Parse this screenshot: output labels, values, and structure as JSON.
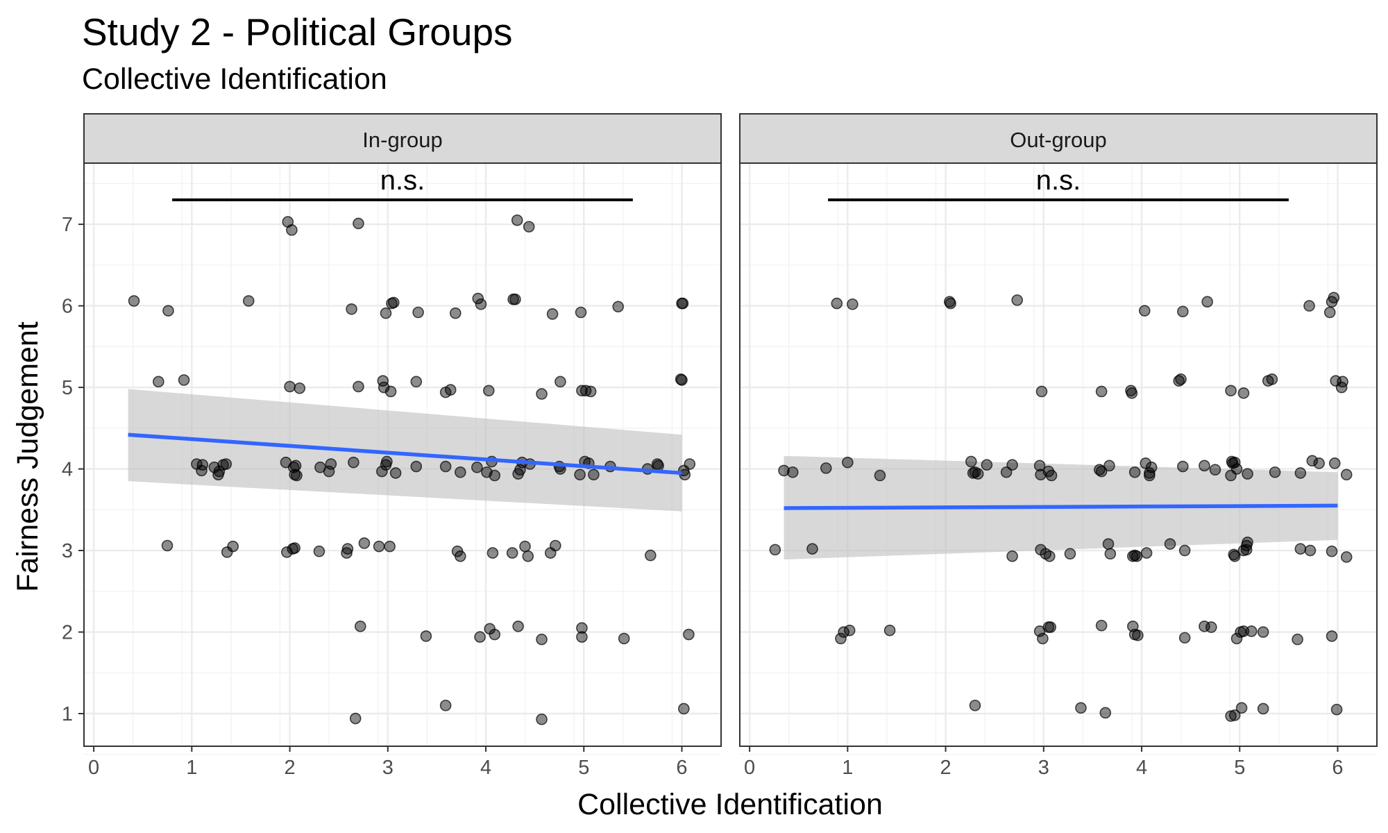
{
  "chart_data": {
    "type": "scatter",
    "title": "Study 2 - Political Groups",
    "subtitle": "Collective Identification",
    "xlabel": "Collective Identification",
    "ylabel": "Fairness Judgement",
    "xlim": [
      -0.1,
      6.4
    ],
    "ylim": [
      0.6,
      7.75
    ],
    "x_ticks": [
      0,
      1,
      2,
      3,
      4,
      5,
      6
    ],
    "y_ticks": [
      1,
      2,
      3,
      4,
      5,
      6,
      7
    ],
    "grid": true,
    "colors": {
      "point": "#000000",
      "trend": "#3366FF",
      "ribbon": "#BEBEBE",
      "strip": "#D9D9D9",
      "grid": "#EBEBEB"
    },
    "panels": [
      {
        "label": "In-group",
        "annotation": {
          "text": "n.s.",
          "x_from": 0.8,
          "x_to": 5.5,
          "y": 7.3
        },
        "trend": {
          "x": [
            0.35,
            6.0
          ],
          "y": [
            4.42,
            3.95
          ],
          "ci_lower": [
            3.85,
            3.48
          ],
          "ci_upper": [
            4.98,
            4.42
          ]
        },
        "points": [
          [
            0.41,
            6.06
          ],
          [
            0.76,
            5.94
          ],
          [
            1.58,
            6.06
          ],
          [
            2.63,
            5.96
          ],
          [
            3.04,
            6.03
          ],
          [
            3.06,
            6.04
          ],
          [
            2.98,
            5.91
          ],
          [
            3.31,
            5.92
          ],
          [
            3.69,
            5.91
          ],
          [
            3.92,
            6.09
          ],
          [
            3.95,
            6.02
          ],
          [
            4.28,
            6.08
          ],
          [
            4.3,
            6.08
          ],
          [
            4.68,
            5.9
          ],
          [
            4.97,
            5.92
          ],
          [
            5.35,
            5.99
          ],
          [
            6.0,
            6.03
          ],
          [
            6.01,
            6.03
          ],
          [
            1.98,
            7.03
          ],
          [
            2.02,
            6.93
          ],
          [
            2.7,
            7.01
          ],
          [
            4.32,
            7.05
          ],
          [
            4.44,
            6.97
          ],
          [
            0.66,
            5.07
          ],
          [
            0.92,
            5.09
          ],
          [
            2.0,
            5.01
          ],
          [
            2.1,
            4.99
          ],
          [
            2.7,
            5.01
          ],
          [
            2.95,
            5.08
          ],
          [
            2.96,
            5.0
          ],
          [
            3.03,
            4.95
          ],
          [
            3.29,
            5.07
          ],
          [
            3.59,
            4.94
          ],
          [
            3.64,
            4.97
          ],
          [
            4.03,
            4.96
          ],
          [
            4.57,
            4.92
          ],
          [
            4.76,
            5.07
          ],
          [
            4.98,
            4.96
          ],
          [
            5.02,
            4.96
          ],
          [
            5.07,
            4.95
          ],
          [
            5.99,
            5.1
          ],
          [
            6.0,
            5.09
          ],
          [
            1.05,
            4.06
          ],
          [
            1.11,
            4.05
          ],
          [
            1.1,
            3.98
          ],
          [
            1.23,
            4.02
          ],
          [
            1.28,
            3.97
          ],
          [
            1.27,
            3.93
          ],
          [
            1.32,
            4.05
          ],
          [
            1.35,
            4.06
          ],
          [
            1.96,
            4.08
          ],
          [
            2.04,
            4.02
          ],
          [
            2.06,
            4.04
          ],
          [
            2.05,
            3.93
          ],
          [
            2.07,
            3.92
          ],
          [
            2.31,
            4.02
          ],
          [
            2.4,
            3.97
          ],
          [
            2.42,
            4.06
          ],
          [
            2.65,
            4.08
          ],
          [
            2.94,
            3.97
          ],
          [
            2.98,
            4.05
          ],
          [
            2.99,
            4.09
          ],
          [
            3.08,
            3.95
          ],
          [
            3.29,
            4.03
          ],
          [
            3.59,
            4.03
          ],
          [
            3.74,
            3.96
          ],
          [
            3.91,
            4.02
          ],
          [
            4.01,
            3.96
          ],
          [
            4.06,
            4.09
          ],
          [
            4.09,
            3.92
          ],
          [
            4.33,
            3.94
          ],
          [
            4.35,
            3.99
          ],
          [
            4.37,
            4.08
          ],
          [
            4.45,
            4.06
          ],
          [
            4.75,
            4.03
          ],
          [
            4.76,
            4.0
          ],
          [
            4.96,
            3.93
          ],
          [
            5.01,
            4.09
          ],
          [
            5.05,
            4.07
          ],
          [
            5.1,
            3.93
          ],
          [
            5.27,
            4.03
          ],
          [
            5.65,
            4.0
          ],
          [
            5.76,
            4.04
          ],
          [
            5.75,
            4.06
          ],
          [
            6.02,
            3.98
          ],
          [
            6.03,
            3.93
          ],
          [
            6.08,
            4.06
          ],
          [
            0.75,
            3.06
          ],
          [
            1.36,
            2.98
          ],
          [
            1.42,
            3.05
          ],
          [
            1.97,
            2.98
          ],
          [
            2.03,
            3.02
          ],
          [
            2.05,
            3.03
          ],
          [
            2.3,
            2.99
          ],
          [
            2.58,
            2.97
          ],
          [
            2.59,
            3.02
          ],
          [
            2.76,
            3.09
          ],
          [
            2.91,
            3.05
          ],
          [
            3.02,
            3.05
          ],
          [
            3.71,
            2.99
          ],
          [
            3.74,
            2.93
          ],
          [
            4.07,
            2.97
          ],
          [
            4.27,
            2.97
          ],
          [
            4.4,
            3.05
          ],
          [
            4.43,
            2.93
          ],
          [
            4.66,
            2.97
          ],
          [
            4.71,
            3.06
          ],
          [
            5.68,
            2.94
          ],
          [
            2.72,
            2.07
          ],
          [
            3.39,
            1.95
          ],
          [
            3.94,
            1.94
          ],
          [
            4.04,
            2.04
          ],
          [
            4.09,
            1.97
          ],
          [
            4.33,
            2.07
          ],
          [
            4.57,
            1.91
          ],
          [
            4.98,
            2.05
          ],
          [
            4.98,
            1.94
          ],
          [
            5.41,
            1.92
          ],
          [
            6.07,
            1.97
          ],
          [
            2.67,
            0.94
          ],
          [
            3.59,
            1.1
          ],
          [
            4.57,
            0.93
          ],
          [
            6.02,
            1.06
          ]
        ]
      },
      {
        "label": "Out-group",
        "annotation": {
          "text": "n.s.",
          "x_from": 0.8,
          "x_to": 5.5,
          "y": 7.3
        },
        "trend": {
          "x": [
            0.35,
            6.0
          ],
          "y": [
            3.52,
            3.55
          ],
          "ci_lower": [
            2.89,
            3.13
          ],
          "ci_upper": [
            4.16,
            3.96
          ]
        },
        "points": [
          [
            0.89,
            6.03
          ],
          [
            1.05,
            6.02
          ],
          [
            2.04,
            6.05
          ],
          [
            2.05,
            6.03
          ],
          [
            2.73,
            6.07
          ],
          [
            4.03,
            5.94
          ],
          [
            4.42,
            5.93
          ],
          [
            4.67,
            6.05
          ],
          [
            5.71,
            6.0
          ],
          [
            5.92,
            5.92
          ],
          [
            5.94,
            6.05
          ],
          [
            5.96,
            6.1
          ],
          [
            2.98,
            4.95
          ],
          [
            3.59,
            4.95
          ],
          [
            3.89,
            4.96
          ],
          [
            3.9,
            4.93
          ],
          [
            4.38,
            5.08
          ],
          [
            4.4,
            5.1
          ],
          [
            4.91,
            4.96
          ],
          [
            5.04,
            4.93
          ],
          [
            5.29,
            5.08
          ],
          [
            5.33,
            5.1
          ],
          [
            5.98,
            5.08
          ],
          [
            6.05,
            5.07
          ],
          [
            6.04,
            5.0
          ],
          [
            0.35,
            3.98
          ],
          [
            0.44,
            3.96
          ],
          [
            0.78,
            4.01
          ],
          [
            1.0,
            4.08
          ],
          [
            1.33,
            3.92
          ],
          [
            2.26,
            4.09
          ],
          [
            2.28,
            3.95
          ],
          [
            2.3,
            3.96
          ],
          [
            2.33,
            3.94
          ],
          [
            2.42,
            4.05
          ],
          [
            2.62,
            3.96
          ],
          [
            2.68,
            4.05
          ],
          [
            2.96,
            4.04
          ],
          [
            2.97,
            3.93
          ],
          [
            3.05,
            3.97
          ],
          [
            3.08,
            3.92
          ],
          [
            3.57,
            3.99
          ],
          [
            3.59,
            3.97
          ],
          [
            3.67,
            4.04
          ],
          [
            3.93,
            3.96
          ],
          [
            4.04,
            4.07
          ],
          [
            4.08,
            3.95
          ],
          [
            4.1,
            4.02
          ],
          [
            4.08,
            3.92
          ],
          [
            4.42,
            4.03
          ],
          [
            4.64,
            4.04
          ],
          [
            4.75,
            3.99
          ],
          [
            4.91,
            3.92
          ],
          [
            4.92,
            4.09
          ],
          [
            4.95,
            4.08
          ],
          [
            4.97,
            4.0
          ],
          [
            4.93,
            4.07
          ],
          [
            5.08,
            3.94
          ],
          [
            5.36,
            3.96
          ],
          [
            5.62,
            3.95
          ],
          [
            5.74,
            4.1
          ],
          [
            5.81,
            4.07
          ],
          [
            5.97,
            4.07
          ],
          [
            6.09,
            3.93
          ],
          [
            0.26,
            3.01
          ],
          [
            0.64,
            3.02
          ],
          [
            2.68,
            2.93
          ],
          [
            2.97,
            3.01
          ],
          [
            3.02,
            2.96
          ],
          [
            3.06,
            2.93
          ],
          [
            3.27,
            2.96
          ],
          [
            3.66,
            3.08
          ],
          [
            3.68,
            2.96
          ],
          [
            3.91,
            2.93
          ],
          [
            3.93,
            2.94
          ],
          [
            3.95,
            2.93
          ],
          [
            4.05,
            2.97
          ],
          [
            4.29,
            3.08
          ],
          [
            4.44,
            3.0
          ],
          [
            4.94,
            2.95
          ],
          [
            4.95,
            2.93
          ],
          [
            5.04,
            3.0
          ],
          [
            5.07,
            3.06
          ],
          [
            5.08,
            3.1
          ],
          [
            5.07,
            3.01
          ],
          [
            5.62,
            3.02
          ],
          [
            5.72,
            3.0
          ],
          [
            5.94,
            2.99
          ],
          [
            6.09,
            2.92
          ],
          [
            0.93,
            1.92
          ],
          [
            0.96,
            2.0
          ],
          [
            1.02,
            2.02
          ],
          [
            1.43,
            2.02
          ],
          [
            2.96,
            2.01
          ],
          [
            2.99,
            1.92
          ],
          [
            3.05,
            2.06
          ],
          [
            3.07,
            2.06
          ],
          [
            3.59,
            2.08
          ],
          [
            3.91,
            2.07
          ],
          [
            3.93,
            1.97
          ],
          [
            3.96,
            1.96
          ],
          [
            4.44,
            1.93
          ],
          [
            4.64,
            2.07
          ],
          [
            4.71,
            2.06
          ],
          [
            4.97,
            1.92
          ],
          [
            5.01,
            2.0
          ],
          [
            5.04,
            2.01
          ],
          [
            5.12,
            2.01
          ],
          [
            5.24,
            2.0
          ],
          [
            5.59,
            1.91
          ],
          [
            5.94,
            1.95
          ],
          [
            2.3,
            1.1
          ],
          [
            3.38,
            1.07
          ],
          [
            3.63,
            1.01
          ],
          [
            4.91,
            0.97
          ],
          [
            4.95,
            0.98
          ],
          [
            5.02,
            1.07
          ],
          [
            5.24,
            1.06
          ],
          [
            5.99,
            1.05
          ]
        ]
      }
    ]
  }
}
